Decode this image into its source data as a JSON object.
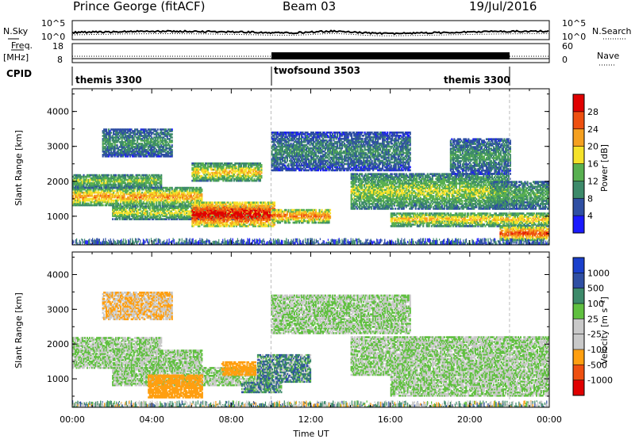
{
  "header": {
    "station_title": "Prince George (fitACF)",
    "beam": "Beam 03",
    "date": "19/Jul/2016"
  },
  "strip_labels": {
    "nsky": "N.Sky",
    "nsky_ticks": [
      "10^5",
      "10^0"
    ],
    "nsearch": "N.Search",
    "nsearch_ticks": [
      "10^5",
      "10^0"
    ],
    "freq": "Freq.",
    "freq_unit": "[MHz]",
    "freq_ticks": [
      "18",
      "8"
    ],
    "nave": "Nave",
    "nave_ticks": [
      "60",
      "0"
    ],
    "cpid": "CPID"
  },
  "cpid_modes": [
    {
      "label": "themis 3300",
      "start_hour": 0,
      "end_hour": 10
    },
    {
      "label": "twofsound 3503",
      "start_hour": 10,
      "end_hour": 22
    },
    {
      "label": "themis 3300",
      "start_hour": 22,
      "end_hour": 24
    }
  ],
  "colors": {
    "power_scale": [
      "#1a1aff",
      "#2f4fa3",
      "#3d8a6a",
      "#58b050",
      "#f5e22a",
      "#f5a020",
      "#ee5010",
      "#e00000"
    ],
    "velocity_scale": [
      "#e00000",
      "#ee5010",
      "#ff9f10",
      "#c9c9c9",
      "#c9c9c9",
      "#60c040",
      "#3d8a6a",
      "#2f4fa3",
      "#1a40cc"
    ]
  },
  "chart_data": [
    {
      "type": "heatmap",
      "title": "Power",
      "xlabel": "",
      "ylabel": "Slant Range [km]",
      "x_ticks": [
        "00:00",
        "04:00",
        "08:00",
        "12:00",
        "16:00",
        "20:00",
        "00:00"
      ],
      "xlim_hours": [
        0,
        24
      ],
      "y_ticks": [
        "1000",
        "2000",
        "3000",
        "4000"
      ],
      "ylim": [
        180,
        4650
      ],
      "colorbar_label": "Power [dB]",
      "colorbar_ticks": [
        "4",
        "8",
        "12",
        "16",
        "20",
        "24",
        "28"
      ],
      "colorbar_range": [
        0,
        32
      ],
      "bands": [
        {
          "start": 0.0,
          "end": 6.5,
          "range_lo": 1300,
          "range_hi": 1800,
          "value": 20
        },
        {
          "start": 0.0,
          "end": 4.5,
          "range_lo": 1800,
          "range_hi": 2200,
          "value": 14
        },
        {
          "start": 6.0,
          "end": 9.5,
          "range_lo": 2000,
          "range_hi": 2500,
          "value": 18
        },
        {
          "start": 2.0,
          "end": 10.0,
          "range_lo": 900,
          "range_hi": 1300,
          "value": 16
        },
        {
          "start": 6.0,
          "end": 10.2,
          "range_lo": 700,
          "range_hi": 1400,
          "value": 28
        },
        {
          "start": 10.0,
          "end": 13.0,
          "range_lo": 800,
          "range_hi": 1200,
          "value": 22
        },
        {
          "start": 1.5,
          "end": 5.0,
          "range_lo": 2700,
          "range_hi": 3500,
          "value": 10
        },
        {
          "start": 10.0,
          "end": 17.0,
          "range_lo": 2300,
          "range_hi": 3400,
          "value": 9
        },
        {
          "start": 14.0,
          "end": 22.0,
          "range_lo": 1200,
          "range_hi": 2200,
          "value": 15
        },
        {
          "start": 16.0,
          "end": 24.0,
          "range_lo": 700,
          "range_hi": 1100,
          "value": 18
        },
        {
          "start": 19.0,
          "end": 22.0,
          "range_lo": 2200,
          "range_hi": 3200,
          "value": 10
        },
        {
          "start": 21.0,
          "end": 24.0,
          "range_lo": 1200,
          "range_hi": 2000,
          "value": 12
        },
        {
          "start": 21.5,
          "end": 24.0,
          "range_lo": 300,
          "range_hi": 700,
          "value": 24
        }
      ]
    },
    {
      "type": "heatmap",
      "title": "Velocity",
      "xlabel": "Time UT",
      "ylabel": "Slant Range [km]",
      "x_ticks": [
        "00:00",
        "04:00",
        "08:00",
        "12:00",
        "16:00",
        "20:00",
        "00:00"
      ],
      "xlim_hours": [
        0,
        24
      ],
      "y_ticks": [
        "1000",
        "2000",
        "3000",
        "4000"
      ],
      "ylim": [
        180,
        4650
      ],
      "colorbar_label": "Velocity [m s⁻¹]",
      "colorbar_ticks": [
        "1000",
        "500",
        "100",
        "25",
        "-25",
        "-100",
        "-500",
        "-1000"
      ],
      "bands": [
        {
          "start": 0.0,
          "end": 6.5,
          "range_lo": 1300,
          "range_hi": 1800,
          "value": "0"
        },
        {
          "start": 0.0,
          "end": 4.5,
          "range_lo": 1800,
          "range_hi": 2200,
          "value": "0"
        },
        {
          "start": 2.0,
          "end": 10.0,
          "range_lo": 800,
          "range_hi": 1300,
          "value": "0"
        },
        {
          "start": 3.8,
          "end": 6.5,
          "range_lo": 450,
          "range_hi": 1100,
          "value": "-300"
        },
        {
          "start": 7.5,
          "end": 9.2,
          "range_lo": 1100,
          "range_hi": 1500,
          "value": "-300"
        },
        {
          "start": 9.3,
          "end": 12.0,
          "range_lo": 900,
          "range_hi": 1700,
          "value": "60"
        },
        {
          "start": 8.5,
          "end": 10.5,
          "range_lo": 600,
          "range_hi": 900,
          "value": "60"
        },
        {
          "start": 10.0,
          "end": 17.0,
          "range_lo": 2300,
          "range_hi": 3400,
          "value": "0"
        },
        {
          "start": 14.0,
          "end": 24.0,
          "range_lo": 1100,
          "range_hi": 2200,
          "value": "0"
        },
        {
          "start": 16.0,
          "end": 24.0,
          "range_lo": 500,
          "range_hi": 1100,
          "value": "0"
        },
        {
          "start": 1.5,
          "end": 5.0,
          "range_lo": 2700,
          "range_hi": 3500,
          "value": "-100"
        }
      ]
    }
  ]
}
